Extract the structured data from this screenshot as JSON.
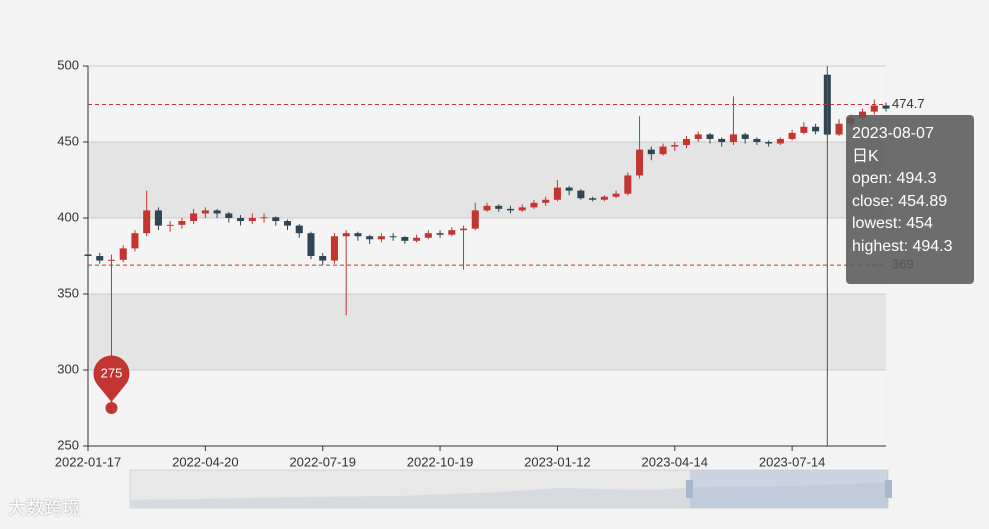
{
  "chart_data": {
    "type": "candlestick",
    "categories": [
      "2022-01-17",
      null,
      null,
      null,
      null,
      null,
      null,
      null,
      null,
      null,
      "2022-04-20",
      null,
      null,
      null,
      null,
      null,
      null,
      null,
      null,
      null,
      "2022-07-19",
      null,
      null,
      null,
      null,
      null,
      null,
      null,
      null,
      null,
      "2022-10-19",
      null,
      null,
      null,
      null,
      null,
      null,
      null,
      null,
      null,
      "2023-01-12",
      null,
      null,
      null,
      null,
      null,
      null,
      null,
      null,
      null,
      "2023-04-14",
      null,
      null,
      null,
      null,
      null,
      null,
      null,
      null,
      null,
      "2023-07-14",
      null,
      null,
      null,
      null,
      null,
      null,
      null,
      null
    ],
    "series": [
      {
        "name": "日K",
        "up_color": "#c23531",
        "down_color": "#2f4554",
        "values": [
          [
            376,
            375,
            372,
            378
          ],
          [
            375,
            372,
            370,
            377
          ],
          [
            372,
            372.5,
            275,
            376
          ],
          [
            372.5,
            380,
            371,
            382
          ],
          [
            380,
            390,
            378,
            392
          ],
          [
            390,
            405,
            388,
            418
          ],
          [
            405,
            395,
            392,
            407
          ],
          [
            395,
            395.5,
            391,
            398
          ],
          [
            395.5,
            398,
            393,
            400
          ],
          [
            398,
            403,
            396,
            406
          ],
          [
            403,
            405,
            400,
            407
          ],
          [
            405,
            403,
            400,
            406
          ],
          [
            403,
            400,
            397,
            404
          ],
          [
            400,
            398,
            395,
            402
          ],
          [
            398,
            400,
            396,
            403
          ],
          [
            400,
            400.5,
            397,
            403
          ],
          [
            400.5,
            398,
            395,
            401
          ],
          [
            398,
            395,
            392,
            399
          ],
          [
            395,
            390,
            387,
            396
          ],
          [
            390,
            375,
            373,
            391
          ],
          [
            375,
            372,
            369,
            377
          ],
          [
            372,
            388,
            370,
            390
          ],
          [
            388,
            390,
            336,
            392
          ],
          [
            390,
            388,
            385,
            391
          ],
          [
            388,
            386,
            383,
            389
          ],
          [
            386,
            388,
            384,
            390
          ],
          [
            388,
            387.5,
            385,
            390
          ],
          [
            387.5,
            385,
            383,
            388
          ],
          [
            385,
            387,
            384,
            389
          ],
          [
            387,
            390,
            386,
            392
          ],
          [
            390,
            389,
            387,
            392
          ],
          [
            389,
            392,
            388,
            394
          ],
          [
            392,
            393,
            366,
            395
          ],
          [
            393,
            405,
            392,
            410
          ],
          [
            405,
            408,
            404,
            410
          ],
          [
            408,
            406,
            404,
            409
          ],
          [
            406,
            405,
            403,
            408
          ],
          [
            405,
            407,
            404,
            409
          ],
          [
            407,
            410,
            406,
            412
          ],
          [
            410,
            412,
            408,
            414
          ],
          [
            412,
            420,
            411,
            425
          ],
          [
            420,
            418,
            415,
            421
          ],
          [
            418,
            413,
            412,
            419
          ],
          [
            413,
            412,
            411,
            414
          ],
          [
            412,
            414,
            411,
            415
          ],
          [
            414,
            416,
            413,
            418
          ],
          [
            416,
            428,
            415,
            430
          ],
          [
            428,
            445,
            426,
            467
          ],
          [
            445,
            442,
            438,
            447
          ],
          [
            442,
            447,
            441,
            449
          ],
          [
            447,
            448,
            444,
            450
          ],
          [
            448,
            452,
            446,
            454
          ],
          [
            452,
            455,
            450,
            457
          ],
          [
            455,
            452,
            449,
            456
          ],
          [
            452,
            450,
            447,
            453
          ],
          [
            450,
            455,
            448,
            480
          ],
          [
            455,
            452,
            449,
            456
          ],
          [
            452,
            450,
            448,
            453
          ],
          [
            450,
            449,
            447,
            451
          ],
          [
            449,
            452,
            448,
            453
          ],
          [
            452,
            456,
            451,
            458
          ],
          [
            456,
            460,
            455,
            463
          ],
          [
            460,
            457,
            455,
            462
          ],
          [
            494.3,
            454.89,
            454,
            494.3
          ],
          [
            454.89,
            462,
            454,
            465
          ],
          [
            462,
            466,
            460,
            468
          ],
          [
            466,
            470,
            464,
            472
          ],
          [
            470,
            474,
            468,
            478
          ],
          [
            474,
            472,
            470,
            476
          ]
        ]
      }
    ],
    "ylim": [
      250,
      500
    ],
    "yticks": [
      250,
      300,
      350,
      400,
      450,
      500
    ],
    "split_area": true,
    "max_point": 494,
    "min_point": 275,
    "mark_lines": [
      474.7,
      369
    ],
    "mark_color": "#c23531",
    "tooltip": {
      "title": "2023-08-07",
      "lines": [
        "open: 494.3",
        "close: 454.89",
        "lowest: 454",
        "highest: 494.3"
      ]
    }
  },
  "watermark": "大数跨境"
}
